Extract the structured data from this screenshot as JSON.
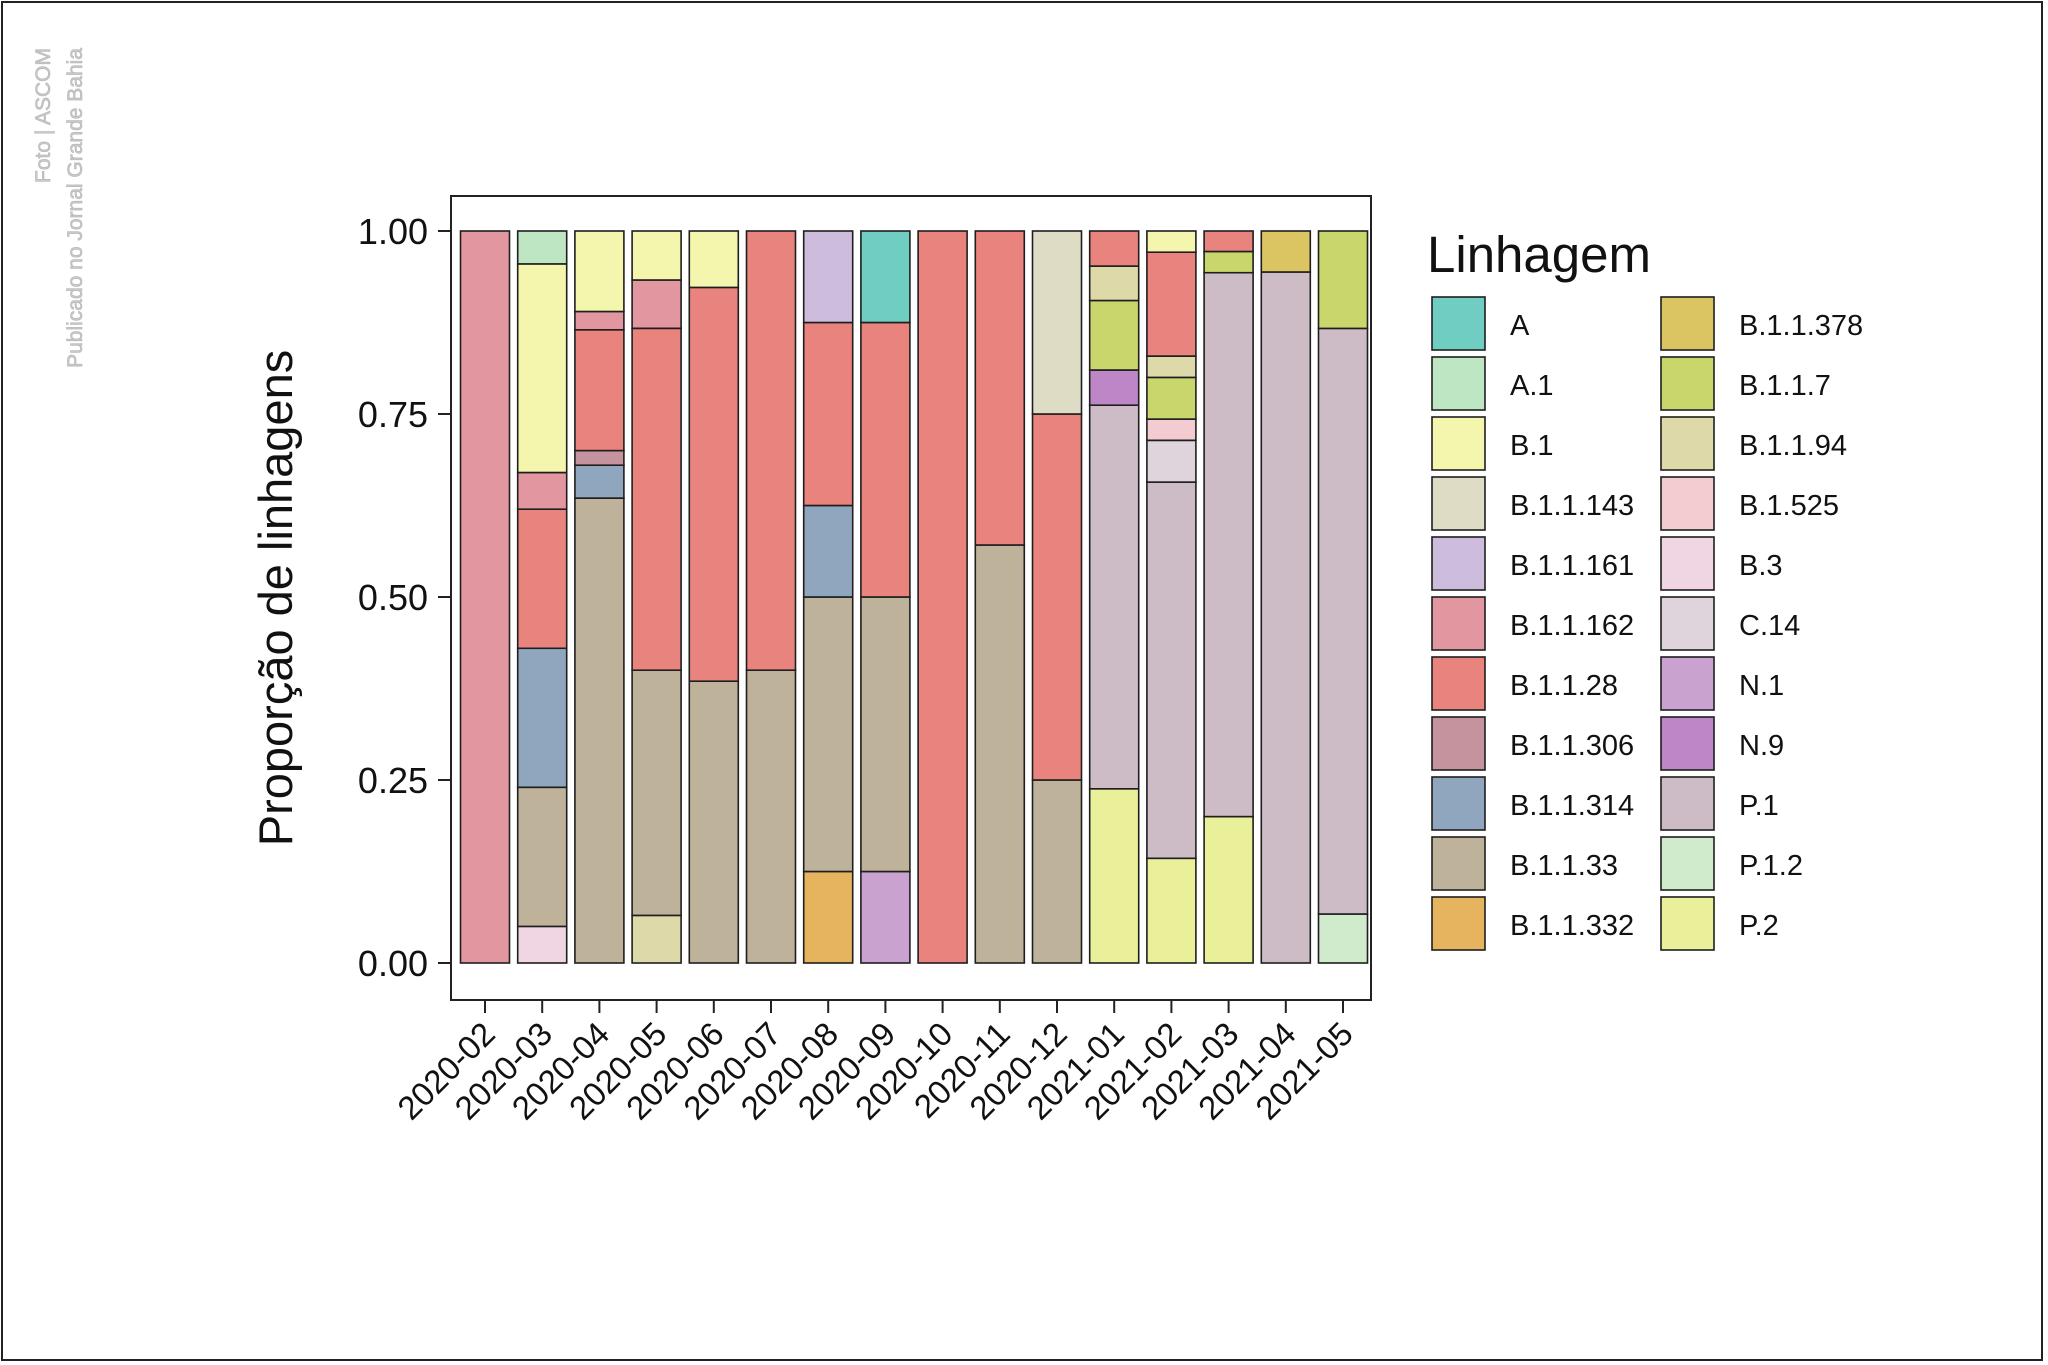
{
  "credit": {
    "line1": "Foto | ASCOM",
    "line2": "Publicado no Jornal Grande Bahia"
  },
  "chart_data": {
    "type": "bar",
    "stacked": true,
    "ylabel": "Proporção de linhagens",
    "xlabel": "",
    "ylim": [
      0,
      1
    ],
    "yticks": [
      "0.00",
      "0.25",
      "0.50",
      "0.75",
      "1.00"
    ],
    "legend_title": "Linhagem",
    "legend_position": "right",
    "categories": [
      "2020-02",
      "2020-03",
      "2020-04",
      "2020-05",
      "2020-06",
      "2020-07",
      "2020-08",
      "2020-09",
      "2020-10",
      "2020-11",
      "2020-12",
      "2021-01",
      "2021-02",
      "2021-03",
      "2021-04",
      "2021-05"
    ],
    "lineages": [
      {
        "name": "A",
        "color": "#6fcdc2"
      },
      {
        "name": "A.1",
        "color": "#bfe6c2"
      },
      {
        "name": "B.1",
        "color": "#f3f6ac"
      },
      {
        "name": "B.1.1.143",
        "color": "#dfdcc6"
      },
      {
        "name": "B.1.1.161",
        "color": "#cdbcdb"
      },
      {
        "name": "B.1.1.162",
        "color": "#e2969f"
      },
      {
        "name": "B.1.1.28",
        "color": "#e8837d"
      },
      {
        "name": "B.1.1.306",
        "color": "#c5939d"
      },
      {
        "name": "B.1.1.314",
        "color": "#90a6bf"
      },
      {
        "name": "B.1.1.33",
        "color": "#bfb29a"
      },
      {
        "name": "B.1.1.332",
        "color": "#e6b35e"
      },
      {
        "name": "B.1.1.378",
        "color": "#dbc462"
      },
      {
        "name": "B.1.1.7",
        "color": "#c8d66c"
      },
      {
        "name": "B.1.1.94",
        "color": "#ddd9a8"
      },
      {
        "name": "B.1.525",
        "color": "#f3ccd1"
      },
      {
        "name": "B.3",
        "color": "#f0d5e3"
      },
      {
        "name": "C.14",
        "color": "#dfd3dc"
      },
      {
        "name": "N.1",
        "color": "#c9a2cf"
      },
      {
        "name": "N.9",
        "color": "#bd86c6"
      },
      {
        "name": "P.1",
        "color": "#cdbcc6"
      },
      {
        "name": "P.1.2",
        "color": "#d0ebcb"
      },
      {
        "name": "P.2",
        "color": "#eaef99"
      }
    ],
    "bars": [
      [
        [
          "B.1.1.162",
          1.0
        ]
      ],
      [
        [
          "B.3",
          0.05
        ],
        [
          "B.1.1.33",
          0.19
        ],
        [
          "B.1.1.314",
          0.19
        ],
        [
          "B.1.1.28",
          0.19
        ],
        [
          "B.1.1.162",
          0.05
        ],
        [
          "B.1",
          0.285
        ],
        [
          "A.1",
          0.045
        ]
      ],
      [
        [
          "B.1.1.33",
          0.635
        ],
        [
          "B.1.1.314",
          0.045
        ],
        [
          "B.1.1.306",
          0.02
        ],
        [
          "B.1.1.28",
          0.165
        ],
        [
          "B.1.1.162",
          0.025
        ],
        [
          "B.1",
          0.11
        ]
      ],
      [
        [
          "B.1.1.94",
          0.065
        ],
        [
          "B.1.1.33",
          0.335
        ],
        [
          "B.1.1.28",
          0.467
        ],
        [
          "B.1.1.162",
          0.066
        ],
        [
          "B.1",
          0.067
        ]
      ],
      [
        [
          "B.1.1.33",
          0.385
        ],
        [
          "B.1.1.28",
          0.538
        ],
        [
          "B.1",
          0.077
        ]
      ],
      [
        [
          "B.1.1.33",
          0.4
        ],
        [
          "B.1.1.28",
          0.6
        ]
      ],
      [
        [
          "B.1.1.332",
          0.125
        ],
        [
          "B.1.1.33",
          0.375
        ],
        [
          "B.1.1.314",
          0.125
        ],
        [
          "B.1.1.28",
          0.25
        ],
        [
          "B.1.1.161",
          0.125
        ]
      ],
      [
        [
          "N.1",
          0.125
        ],
        [
          "B.1.1.33",
          0.375
        ],
        [
          "B.1.1.28",
          0.375
        ],
        [
          "A",
          0.125
        ]
      ],
      [
        [
          "B.1.1.28",
          1.0
        ]
      ],
      [
        [
          "B.1.1.33",
          0.571
        ],
        [
          "B.1.1.28",
          0.429
        ]
      ],
      [
        [
          "B.1.1.33",
          0.25
        ],
        [
          "B.1.1.28",
          0.5
        ],
        [
          "B.1.1.143",
          0.25
        ]
      ],
      [
        [
          "P.2",
          0.238
        ],
        [
          "P.1",
          0.524
        ],
        [
          "N.9",
          0.048
        ],
        [
          "B.1.1.7",
          0.095
        ],
        [
          "B.1.1.94",
          0.047
        ],
        [
          "B.1.1.28",
          0.048
        ]
      ],
      [
        [
          "P.2",
          0.143
        ],
        [
          "P.1",
          0.514
        ],
        [
          "C.14",
          0.057
        ],
        [
          "B.1.525",
          0.029
        ],
        [
          "B.1.1.7",
          0.057
        ],
        [
          "B.1.1.94",
          0.029
        ],
        [
          "B.1.1.28",
          0.142
        ],
        [
          "B.1",
          0.029
        ]
      ],
      [
        [
          "P.2",
          0.2
        ],
        [
          "P.1",
          0.743
        ],
        [
          "B.1.1.7",
          0.029
        ],
        [
          "B.1.1.28",
          0.028
        ]
      ],
      [
        [
          "P.1",
          0.944
        ],
        [
          "B.1.1.378",
          0.056
        ]
      ],
      [
        [
          "P.1.2",
          0.067
        ],
        [
          "P.1",
          0.8
        ],
        [
          "B.1.1.7",
          0.133
        ]
      ]
    ]
  }
}
